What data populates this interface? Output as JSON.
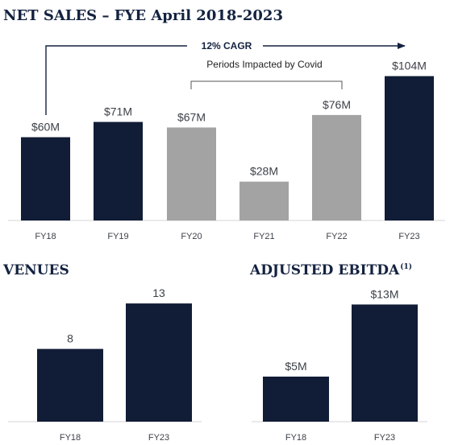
{
  "colors": {
    "navy": "#111c36",
    "gray": "#a3a3a3",
    "axis": "#d4d4d4"
  },
  "chart_data": [
    {
      "type": "bar",
      "title": "NET SALES – FYE April 2018-2023",
      "categories": [
        "FY18",
        "FY19",
        "FY20",
        "FY21",
        "FY22",
        "FY23"
      ],
      "values": [
        60,
        71,
        67,
        28,
        76,
        104
      ],
      "labels": [
        "$60M",
        "$71M",
        "$67M",
        "$28M",
        "$76M",
        "$104M"
      ],
      "bar_colors": [
        "navy",
        "navy",
        "gray",
        "gray",
        "gray",
        "navy"
      ],
      "annotations": {
        "cagr": "12% CAGR",
        "covid": "Periods Impacted by Covid"
      }
    },
    {
      "type": "bar",
      "title": "VENUES",
      "categories": [
        "FY18",
        "FY23"
      ],
      "values": [
        8,
        13
      ],
      "labels": [
        "8",
        "13"
      ],
      "bar_colors": [
        "navy",
        "navy"
      ]
    },
    {
      "type": "bar",
      "title": "ADJUSTED EBITDA",
      "title_superscript": "(1)",
      "categories": [
        "FY18",
        "FY23"
      ],
      "values": [
        5,
        13
      ],
      "labels": [
        "$5M",
        "$13M"
      ],
      "bar_colors": [
        "navy",
        "navy"
      ]
    }
  ]
}
